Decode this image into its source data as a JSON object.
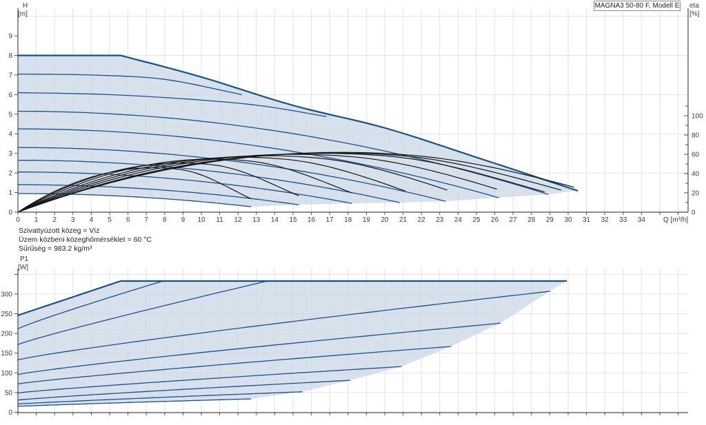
{
  "title_box": "MAGNA3 50-80 F, Modell E",
  "labels": {
    "h": "H",
    "h_unit": "[m]",
    "eta": "eta",
    "eta_unit": "[%]",
    "p1": "P1",
    "p1_unit": "[W]",
    "q_axis": "Q [m³/h]"
  },
  "conditions": [
    "Szivattyúzott közeg = Víz",
    "Üzem közbeni közeghőmérséklet = 60 °C",
    "Sűrűség = 983.2 kg/m³"
  ],
  "colors": {
    "curve_blue": "#15518f",
    "fill_blue": "#cdd9e7",
    "eta_black": "#141414",
    "grid": "#e2e2e2",
    "axis": "#4a4a4a",
    "text": "#3a3a3a"
  },
  "chart_data": [
    {
      "type": "line",
      "title": "H/Q pump curves with efficiency",
      "xlabel": "Q [m³/h]",
      "ylabel_left": "H [m]",
      "ylabel_right": "eta [%]",
      "xlim": [
        0,
        36.5
      ],
      "ylim_left": [
        0,
        10.5
      ],
      "x_ticks": [
        0,
        1,
        2,
        3,
        4,
        5,
        6,
        7,
        8,
        9,
        10,
        11,
        12,
        13,
        14,
        15,
        16,
        17,
        18,
        19,
        20,
        21,
        22,
        23,
        24,
        25,
        26,
        27,
        28,
        29,
        30,
        31,
        32,
        33,
        34
      ],
      "h_ticks": [
        0,
        1,
        2,
        3,
        4,
        5,
        6,
        7,
        8,
        9
      ],
      "eta_ticks": [
        0,
        20,
        40,
        60,
        80,
        100
      ],
      "grid_h_step": 2,
      "envelope_points": [
        [
          0,
          8
        ],
        [
          5.6,
          8
        ],
        [
          10,
          6.9
        ],
        [
          15,
          5.45
        ],
        [
          20,
          4.3
        ],
        [
          25,
          2.8
        ],
        [
          30.5,
          1.1
        ]
      ],
      "speed_curves_points": [
        [
          [
            0,
            7.05
          ],
          [
            4,
            7.0
          ],
          [
            8,
            6.78
          ],
          [
            12.2,
            6.0
          ]
        ],
        [
          [
            0,
            6.1
          ],
          [
            5,
            6.0
          ],
          [
            10,
            5.72
          ],
          [
            13.5,
            5.4
          ],
          [
            16.8,
            4.88
          ]
        ]
      ],
      "speed_curves_quad": [
        {
          "h0": 5.15,
          "q_end": 28.9,
          "h_end": 0.91
        },
        {
          "h0": 4.25,
          "q_end": 26.2,
          "h_end": 0.74
        },
        {
          "h0": 3.3,
          "q_end": 23.3,
          "h_end": 0.56
        },
        {
          "h0": 2.65,
          "q_end": 20.8,
          "h_end": 0.49
        },
        {
          "h0": 2.05,
          "q_end": 18.2,
          "h_end": 0.45
        },
        {
          "h0": 1.4,
          "q_end": 15.3,
          "h_end": 0.38
        },
        {
          "h0": 0.95,
          "q_end": 12.7,
          "h_end": 0.28
        }
      ],
      "max_flow_boundary": [
        [
          12.7,
          0.28
        ],
        [
          15.3,
          0.38
        ],
        [
          18.2,
          0.45
        ],
        [
          20.8,
          0.49
        ],
        [
          23.3,
          0.56
        ],
        [
          26.2,
          0.74
        ],
        [
          28.9,
          0.91
        ],
        [
          30.5,
          1.1
        ]
      ],
      "eta_curves": [
        {
          "peak_eta": 62,
          "q_peak": 17.6,
          "q_end": 30.3,
          "eta_end": 26
        },
        {
          "peak_eta": 61.5,
          "q_peak": 17.2,
          "q_end": 29.6,
          "eta_end": 23
        },
        {
          "peak_eta": 61,
          "q_peak": 16.6,
          "q_end": 28.7,
          "eta_end": 21
        },
        {
          "peak_eta": 60,
          "q_peak": 15.1,
          "q_end": 26.1,
          "eta_end": 24
        },
        {
          "peak_eta": 58.5,
          "q_peak": 13.6,
          "q_end": 23.4,
          "eta_end": 23
        },
        {
          "peak_eta": 57,
          "q_peak": 12.2,
          "q_end": 21.1,
          "eta_end": 22
        },
        {
          "peak_eta": 55,
          "q_peak": 10.6,
          "q_end": 18.2,
          "eta_end": 20
        },
        {
          "peak_eta": 51,
          "q_peak": 8.9,
          "q_end": 15.3,
          "eta_end": 17
        },
        {
          "peak_eta": 46,
          "q_peak": 7.4,
          "q_end": 12.7,
          "eta_end": 14
        }
      ]
    },
    {
      "type": "line",
      "title": "P1 power curves",
      "ylabel_left": "P1 [W]",
      "xlim": [
        0,
        36.5
      ],
      "p_ticks": [
        0,
        50,
        100,
        150,
        200,
        250,
        300
      ],
      "grid_p_max": 350,
      "power_curves": [
        {
          "p0": 246,
          "q_knee": 5.6,
          "p_max": 333,
          "q_end": 29.9,
          "exp": 1.0
        },
        {
          "p0": 212,
          "q_knee": 7.9,
          "p_max": 333,
          "q_end": 28.8,
          "exp": 0.92
        },
        {
          "p0": 172,
          "q_knee": 13.6,
          "p_max": 333,
          "q_end": 27.8,
          "exp": 0.92
        },
        {
          "p0": 133,
          "q_knee": 29.0,
          "p_max": 307,
          "q_end": 29.0,
          "exp": 0.88
        },
        {
          "p0": 96,
          "q_knee": 26.3,
          "p_max": 226,
          "q_end": 26.3,
          "exp": 0.88
        },
        {
          "p0": 72,
          "q_knee": 23.6,
          "p_max": 167,
          "q_end": 23.6,
          "exp": 0.88
        },
        {
          "p0": 49,
          "q_knee": 20.9,
          "p_max": 116,
          "q_end": 20.9,
          "exp": 0.88
        },
        {
          "p0": 31,
          "q_knee": 18.1,
          "p_max": 81,
          "q_end": 18.1,
          "exp": 0.88
        },
        {
          "p0": 21,
          "q_knee": 15.5,
          "p_max": 52,
          "q_end": 15.5,
          "exp": 0.9
        },
        {
          "p0": 15,
          "q_knee": 12.7,
          "p_max": 34,
          "q_end": 12.7,
          "exp": 0.9
        }
      ],
      "power_boundary": [
        [
          12.7,
          34
        ],
        [
          15.5,
          52
        ],
        [
          18.1,
          81
        ],
        [
          20.9,
          116
        ],
        [
          23.6,
          167
        ],
        [
          26.3,
          226
        ],
        [
          29.0,
          307
        ],
        [
          29.9,
          333
        ]
      ]
    }
  ]
}
